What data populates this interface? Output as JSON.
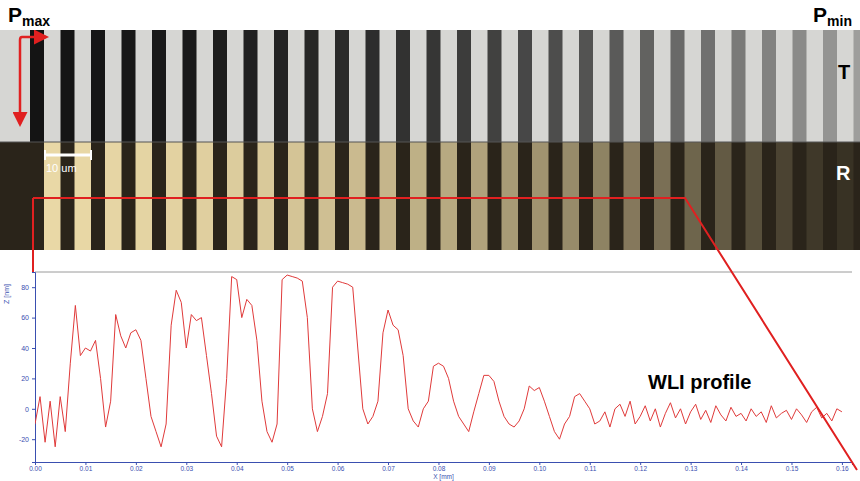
{
  "pressure_labels": [
    "Pmax",
    "Pmin"
  ],
  "panels": [
    {
      "label": "T"
    },
    {
      "label": "R",
      "scale_bar": "10 um"
    }
  ],
  "chart_data": {
    "type": "line",
    "annotations": [
      "WLI profile"
    ],
    "x_label": "X [mm]",
    "y_label": "Z [nm]",
    "color": "#e03a3a",
    "grid": false,
    "xlim": [
      0,
      0.162
    ],
    "ylim": [
      -35,
      90
    ],
    "xticks": [
      {
        "value": 0,
        "label": "0.00"
      },
      {
        "value": 0.01,
        "label": "0.01"
      },
      {
        "value": 0.02,
        "label": "0.02"
      },
      {
        "value": 0.03,
        "label": "0.03"
      },
      {
        "value": 0.04,
        "label": "0.04"
      },
      {
        "value": 0.05,
        "label": "0.05"
      },
      {
        "value": 0.06,
        "label": "0.06"
      },
      {
        "value": 0.07,
        "label": "0.07"
      },
      {
        "value": 0.08,
        "label": "0.08"
      },
      {
        "value": 0.09,
        "label": "0.09"
      },
      {
        "value": 0.1,
        "label": "0.10"
      },
      {
        "value": 0.11,
        "label": "0.11"
      },
      {
        "value": 0.12,
        "label": "0.12"
      },
      {
        "value": 0.13,
        "label": "0.13"
      },
      {
        "value": 0.14,
        "label": "0.14"
      },
      {
        "value": 0.15,
        "label": "0.15"
      },
      {
        "value": 0.16,
        "label": "0.16"
      }
    ],
    "yticks": [
      -20,
      0,
      20,
      40,
      60,
      80
    ],
    "x": [
      0,
      0.001,
      0.002,
      0.003,
      0.004,
      0.005,
      0.006,
      0.007,
      0.008,
      0.009,
      0.01,
      0.011,
      0.012,
      0.013,
      0.014,
      0.015,
      0.016,
      0.017,
      0.018,
      0.019,
      0.02,
      0.021,
      0.022,
      0.023,
      0.024,
      0.025,
      0.026,
      0.027,
      0.028,
      0.029,
      0.03,
      0.031,
      0.032,
      0.033,
      0.034,
      0.035,
      0.036,
      0.037,
      0.038,
      0.039,
      0.04,
      0.041,
      0.042,
      0.043,
      0.044,
      0.045,
      0.046,
      0.047,
      0.048,
      0.049,
      0.05,
      0.051,
      0.052,
      0.053,
      0.054,
      0.055,
      0.056,
      0.057,
      0.058,
      0.059,
      0.06,
      0.061,
      0.062,
      0.063,
      0.064,
      0.065,
      0.066,
      0.067,
      0.068,
      0.069,
      0.07,
      0.071,
      0.072,
      0.073,
      0.074,
      0.075,
      0.076,
      0.077,
      0.078,
      0.079,
      0.08,
      0.081,
      0.082,
      0.083,
      0.084,
      0.085,
      0.086,
      0.087,
      0.088,
      0.089,
      0.09,
      0.091,
      0.092,
      0.093,
      0.094,
      0.095,
      0.096,
      0.097,
      0.098,
      0.099,
      0.1,
      0.101,
      0.102,
      0.103,
      0.104,
      0.105,
      0.106,
      0.107,
      0.108,
      0.109,
      0.11,
      0.111,
      0.112,
      0.113,
      0.114,
      0.115,
      0.116,
      0.117,
      0.118,
      0.119,
      0.12,
      0.121,
      0.122,
      0.123,
      0.124,
      0.125,
      0.126,
      0.127,
      0.128,
      0.129,
      0.13,
      0.131,
      0.132,
      0.133,
      0.134,
      0.135,
      0.136,
      0.137,
      0.138,
      0.139,
      0.14,
      0.141,
      0.142,
      0.143,
      0.144,
      0.145,
      0.146,
      0.147,
      0.148,
      0.149,
      0.15,
      0.151,
      0.152,
      0.153,
      0.154,
      0.155,
      0.156,
      0.157,
      0.158,
      0.159,
      0.16
    ],
    "values": [
      -10,
      8,
      -22,
      5,
      -25,
      8,
      -15,
      30,
      68,
      35,
      40,
      38,
      45,
      20,
      -12,
      5,
      62,
      48,
      40,
      50,
      52,
      45,
      20,
      -5,
      -15,
      -25,
      -10,
      55,
      78,
      70,
      40,
      62,
      58,
      60,
      35,
      10,
      -18,
      -25,
      20,
      87,
      85,
      60,
      72,
      68,
      45,
      5,
      -15,
      -22,
      -10,
      85,
      88,
      87,
      86,
      84,
      60,
      0,
      -15,
      -5,
      10,
      80,
      84,
      83,
      82,
      80,
      40,
      0,
      -10,
      -5,
      5,
      50,
      65,
      55,
      52,
      35,
      0,
      -8,
      -12,
      0,
      5,
      28,
      30,
      28,
      20,
      5,
      -5,
      -10,
      -15,
      -2,
      10,
      22,
      22,
      18,
      5,
      -5,
      -10,
      -12,
      -8,
      0,
      15,
      12,
      14,
      5,
      -5,
      -15,
      -20,
      -10,
      -5,
      8,
      10,
      5,
      0,
      -10,
      -8,
      -2,
      -12,
      0,
      3,
      -5,
      5,
      -10,
      -5,
      2,
      -8,
      0,
      -12,
      -3,
      4,
      -6,
      0,
      -10,
      -2,
      3,
      -7,
      -1,
      -9,
      2,
      -4,
      -8,
      1,
      -5,
      -3,
      -8,
      0,
      -5,
      -2,
      -9,
      2,
      -6,
      -3,
      -1,
      -7,
      0,
      -4,
      -9,
      -2,
      1,
      -6,
      -3,
      -8,
      0,
      -2
    ]
  }
}
